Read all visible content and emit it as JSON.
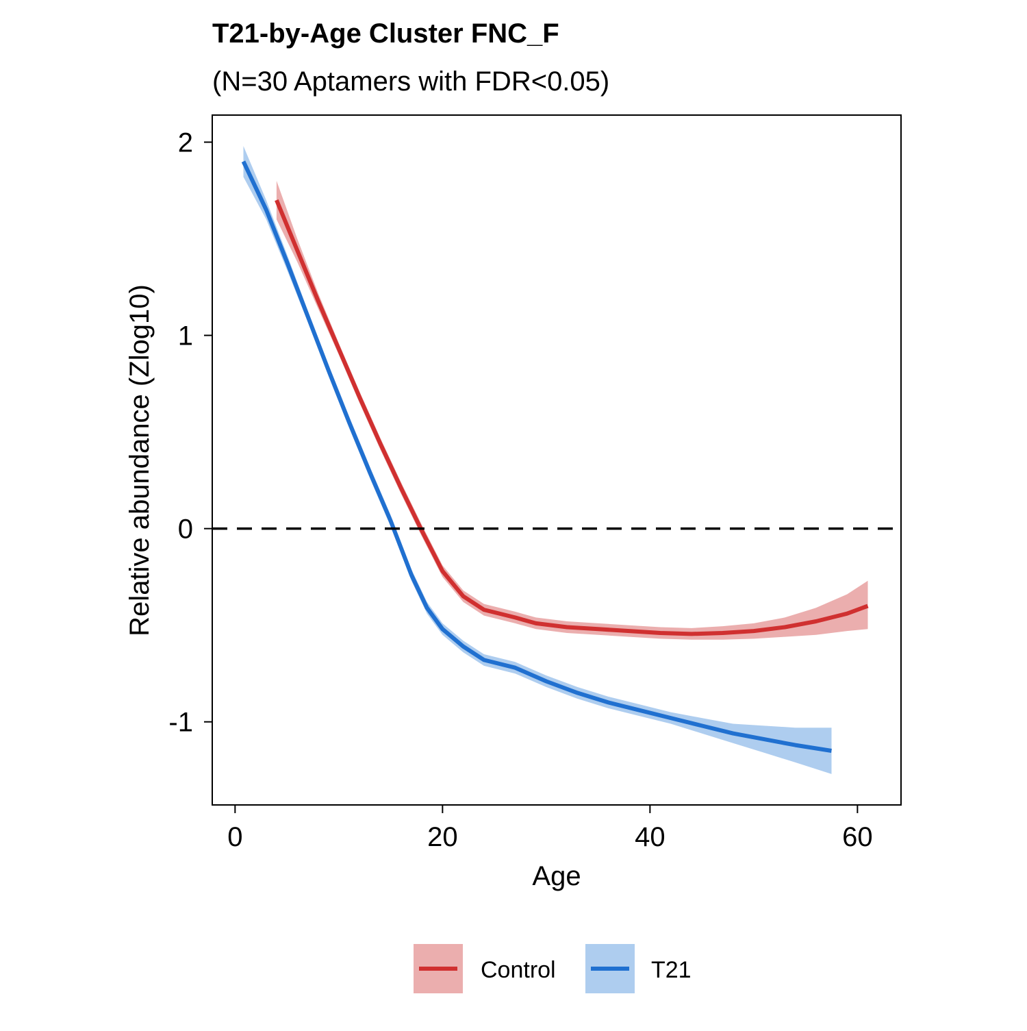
{
  "chart_data": {
    "type": "line",
    "title": "T21-by-Age Cluster FNC_F",
    "subtitle": "(N=30 Aptamers with FDR<0.05)",
    "xlabel": "Age",
    "ylabel": "Relative abundance (Zlog10)",
    "xlim": [
      -2.2,
      64.2
    ],
    "ylim": [
      -1.43,
      2.14
    ],
    "x_ticks": [
      0,
      20,
      40,
      60
    ],
    "x_tick_labels": [
      "0",
      "20",
      "40",
      "60"
    ],
    "y_ticks": [
      2,
      1,
      0,
      -1
    ],
    "y_tick_labels": [
      "2",
      "1",
      "0",
      "-1"
    ],
    "grid": false,
    "reference_line": {
      "y": 0,
      "style": "dashed",
      "color": "#000000"
    },
    "legend_position": "bottom",
    "series": [
      {
        "name": "Control",
        "color": "#D03030",
        "band_color": "#E8A0A0",
        "x": [
          4.0,
          6,
          8,
          10,
          12,
          14,
          16,
          18,
          20,
          22,
          24,
          27,
          29,
          32,
          35,
          38,
          41,
          44,
          47,
          50,
          53,
          56,
          59,
          61
        ],
        "y": [
          1.7,
          1.44,
          1.18,
          0.93,
          0.68,
          0.44,
          0.21,
          -0.01,
          -0.22,
          -0.35,
          -0.42,
          -0.46,
          -0.49,
          -0.51,
          -0.52,
          -0.53,
          -0.54,
          -0.545,
          -0.54,
          -0.53,
          -0.51,
          -0.48,
          -0.44,
          -0.4
        ],
        "lower": [
          1.6,
          1.38,
          1.14,
          0.9,
          0.65,
          0.41,
          0.18,
          -0.04,
          -0.25,
          -0.38,
          -0.45,
          -0.49,
          -0.52,
          -0.54,
          -0.55,
          -0.56,
          -0.57,
          -0.575,
          -0.575,
          -0.57,
          -0.56,
          -0.55,
          -0.53,
          -0.52
        ],
        "upper": [
          1.8,
          1.5,
          1.22,
          0.96,
          0.71,
          0.47,
          0.24,
          0.02,
          -0.19,
          -0.32,
          -0.39,
          -0.43,
          -0.46,
          -0.48,
          -0.49,
          -0.5,
          -0.51,
          -0.515,
          -0.505,
          -0.49,
          -0.46,
          -0.41,
          -0.34,
          -0.27
        ]
      },
      {
        "name": "T21",
        "color": "#2070D0",
        "band_color": "#A0C4EC",
        "x": [
          0.8,
          3,
          5,
          7,
          9,
          11,
          13,
          15,
          17,
          18.5,
          20,
          22,
          24,
          27,
          30,
          33,
          36,
          39,
          42,
          45,
          48,
          51,
          54,
          57.5
        ],
        "y": [
          1.9,
          1.65,
          1.38,
          1.1,
          0.82,
          0.55,
          0.29,
          0.04,
          -0.24,
          -0.41,
          -0.52,
          -0.61,
          -0.68,
          -0.72,
          -0.79,
          -0.85,
          -0.9,
          -0.94,
          -0.98,
          -1.02,
          -1.06,
          -1.09,
          -1.12,
          -1.15
        ],
        "lower": [
          1.82,
          1.6,
          1.34,
          1.07,
          0.79,
          0.52,
          0.26,
          0.01,
          -0.27,
          -0.44,
          -0.55,
          -0.64,
          -0.71,
          -0.75,
          -0.82,
          -0.88,
          -0.93,
          -0.97,
          -1.01,
          -1.06,
          -1.11,
          -1.16,
          -1.21,
          -1.27
        ],
        "upper": [
          1.98,
          1.7,
          1.42,
          1.13,
          0.85,
          0.58,
          0.32,
          0.07,
          -0.21,
          -0.38,
          -0.49,
          -0.58,
          -0.65,
          -0.69,
          -0.76,
          -0.82,
          -0.87,
          -0.91,
          -0.95,
          -0.98,
          -1.01,
          -1.02,
          -1.03,
          -1.03
        ]
      }
    ]
  }
}
